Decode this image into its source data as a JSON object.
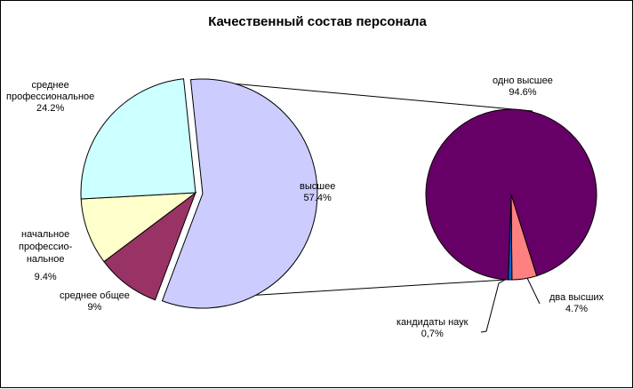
{
  "chart_data": {
    "type": "pie",
    "title": "Качественный состав персонала",
    "series": [
      {
        "values": [
          57.4,
          9.4,
          9.0,
          24.2
        ],
        "slices": [
          {
            "label_lines": [
              "высшее"
            ],
            "value_text": "57.4%",
            "value": 57.4,
            "color": "#ccccff"
          },
          {
            "label_lines": [
              "среднее общее"
            ],
            "value_text": "9%",
            "value": 9.0,
            "color": "#993366"
          },
          {
            "label_lines": [
              "начальное",
              "профессио-",
              "нальное"
            ],
            "value_text": "9.4%",
            "value": 9.4,
            "color": "#ffffcc"
          },
          {
            "label_lines": [
              "среднее",
              "профессиональное"
            ],
            "value_text": "24.2%",
            "value": 24.2,
            "color": "#ccffff"
          }
        ]
      },
      {
        "values": [
          94.6,
          4.7,
          0.7
        ],
        "slices": [
          {
            "label_lines": [
              "одно высшее"
            ],
            "value_text": "94.6%",
            "value": 94.6,
            "color": "#660066"
          },
          {
            "label_lines": [
              "два высших"
            ],
            "value_text": "4.7%",
            "value": 4.7,
            "color": "#ff8080"
          },
          {
            "label_lines": [
              "кандидаты наук"
            ],
            "value_text": "0,7%",
            "value": 0.7,
            "color": "#0066cc"
          }
        ]
      }
    ],
    "exploded_slice": "высшее",
    "legend": "none"
  }
}
